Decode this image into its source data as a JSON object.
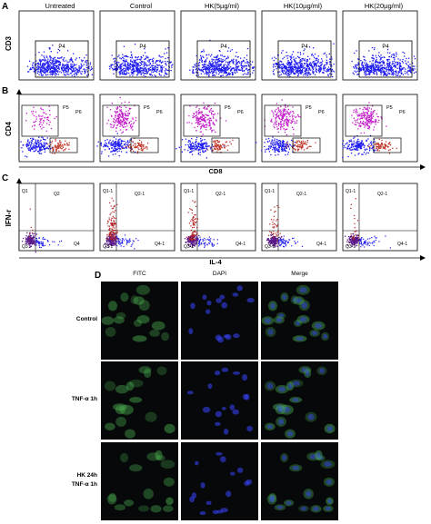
{
  "panels": {
    "A": {
      "label": "A",
      "columns": [
        "Untreated",
        "Control",
        "HK(5µg/ml)",
        "HK(10µg/ml)",
        "HK(20µg/ml)"
      ],
      "ylabel": "CD3",
      "gate": "P4"
    },
    "B": {
      "label": "B",
      "ylabel": "CD4",
      "xlabel": "CD8",
      "gates": [
        "P5",
        "P6"
      ]
    },
    "C": {
      "label": "C",
      "ylabel": "IFN-r",
      "xlabel": "IL-4",
      "quadrants_first": [
        "Q1",
        "Q2",
        "Q3",
        "Q4"
      ],
      "quadrants_rest": [
        "Q1-1",
        "Q2-1",
        "Q3-1",
        "Q4-1"
      ]
    },
    "D": {
      "label": "D",
      "columns": [
        "FITC",
        "DAPI",
        "Merge"
      ],
      "rows": [
        "Control",
        "TNF-α 1h",
        "HK 24h\nTNF-α 1h"
      ]
    }
  },
  "colors": {
    "cd3_dots": "#1f1cf0",
    "cd4_dots": "#c21fc9",
    "cd8_dots": "#c0392b",
    "ifn_dots": "#b22222",
    "fitc": "#4caf50",
    "dapi": "#3a45ff"
  },
  "chart_data": [
    {
      "type": "scatter",
      "panel": "A",
      "ylabel": "CD3",
      "categories": [
        "Untreated",
        "Control",
        "HK(5µg/ml)",
        "HK(10µg/ml)",
        "HK(20µg/ml)"
      ],
      "gates": [
        "P4"
      ]
    },
    {
      "type": "scatter",
      "panel": "B",
      "xlabel": "CD8",
      "ylabel": "CD4",
      "gates": [
        "P5",
        "P6"
      ]
    },
    {
      "type": "scatter",
      "panel": "C",
      "xlabel": "IL-4",
      "ylabel": "IFN-r",
      "quadrants": [
        "Q1",
        "Q2",
        "Q3",
        "Q4"
      ]
    }
  ]
}
